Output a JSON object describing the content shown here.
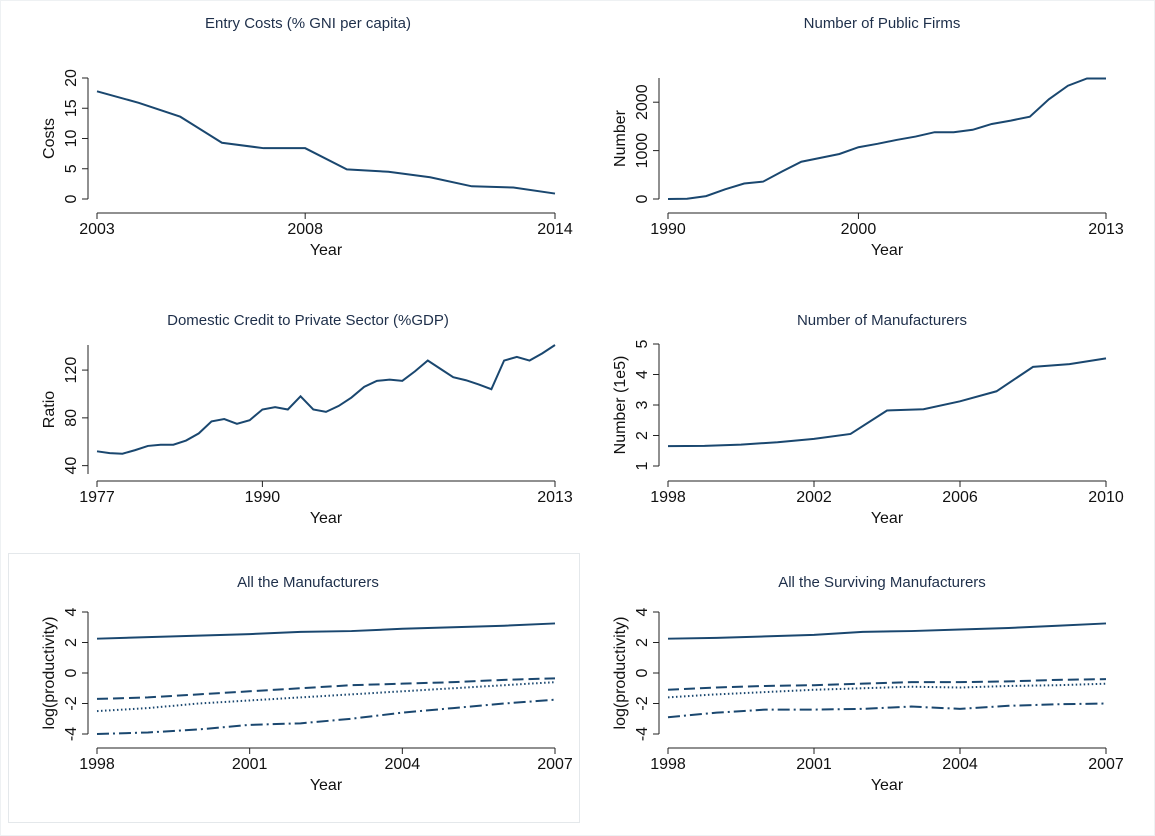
{
  "chart_data": [
    {
      "type": "line",
      "title": "Entry Costs (% GNI per capita)",
      "xlabel": "Year",
      "ylabel": "Costs",
      "x": [
        2003,
        2004,
        2005,
        2006,
        2007,
        2008,
        2009,
        2010,
        2011,
        2012,
        2013,
        2014
      ],
      "series": [
        {
          "color": "#1a476f",
          "dash": "solid",
          "values": [
            17.8,
            15.9,
            13.6,
            9.3,
            8.4,
            8.4,
            4.9,
            4.5,
            3.6,
            2.1,
            1.9,
            0.9
          ]
        }
      ],
      "xlim": [
        2003,
        2014
      ],
      "xticks": [
        2003,
        2008,
        2014
      ],
      "ylim": [
        0,
        20
      ],
      "yticks": [
        0,
        5,
        10,
        15,
        20
      ]
    },
    {
      "type": "line",
      "title": "Number of Public Firms",
      "xlabel": "Year",
      "ylabel": "Number",
      "x": [
        1990,
        1991,
        1992,
        1993,
        1994,
        1995,
        1996,
        1997,
        1998,
        1999,
        2000,
        2001,
        2002,
        2003,
        2004,
        2005,
        2006,
        2007,
        2008,
        2009,
        2010,
        2011,
        2012,
        2013
      ],
      "series": [
        {
          "color": "#1a476f",
          "dash": "solid",
          "values": [
            0,
            5,
            60,
            200,
            320,
            360,
            570,
            770,
            850,
            930,
            1070,
            1140,
            1220,
            1290,
            1380,
            1380,
            1430,
            1550,
            1620,
            1700,
            2060,
            2340,
            2490,
            2490
          ]
        }
      ],
      "xlim": [
        1990,
        2013
      ],
      "xticks": [
        1990,
        2000,
        2013
      ],
      "ylim": [
        0,
        2500
      ],
      "yticks": [
        0,
        1000,
        2000
      ]
    },
    {
      "type": "line",
      "title": "Domestic Credit to Private Sector (%GDP)",
      "xlabel": "Year",
      "ylabel": "Ratio",
      "x": [
        1977,
        1978,
        1979,
        1980,
        1981,
        1982,
        1983,
        1984,
        1985,
        1986,
        1987,
        1988,
        1989,
        1990,
        1991,
        1992,
        1993,
        1994,
        1995,
        1996,
        1997,
        1998,
        1999,
        2000,
        2001,
        2002,
        2003,
        2004,
        2005,
        2006,
        2007,
        2008,
        2009,
        2010,
        2011,
        2012,
        2013
      ],
      "series": [
        {
          "color": "#1a476f",
          "dash": "solid",
          "values": [
            52,
            50.5,
            50,
            53,
            56.5,
            57.5,
            57.5,
            61,
            67,
            77,
            79,
            75,
            78,
            87,
            89,
            87,
            98,
            87,
            85,
            90,
            97,
            106,
            111,
            112,
            111,
            119,
            128,
            121,
            114,
            111.5,
            108,
            104,
            128,
            131,
            128,
            134,
            141
          ]
        }
      ],
      "xlim": [
        1977,
        2013
      ],
      "xticks": [
        1977,
        1990,
        2013
      ],
      "ylim": [
        33,
        141
      ],
      "yticks": [
        40,
        80,
        120
      ]
    },
    {
      "type": "line",
      "title": "Number of Manufacturers",
      "xlabel": "Year",
      "ylabel": "Number (1e5)",
      "x": [
        1998,
        1999,
        2000,
        2001,
        2002,
        2003,
        2004,
        2005,
        2006,
        2007,
        2008,
        2009,
        2010
      ],
      "series": [
        {
          "color": "#1a476f",
          "dash": "solid",
          "values": [
            1.65,
            1.66,
            1.7,
            1.78,
            1.89,
            2.05,
            2.82,
            2.86,
            3.12,
            3.45,
            4.25,
            4.34,
            4.53
          ]
        }
      ],
      "xlim": [
        1998,
        2010
      ],
      "xticks": [
        1998,
        2002,
        2006,
        2010
      ],
      "ylim": [
        1,
        5
      ],
      "yticks": [
        1,
        2,
        3,
        4,
        5
      ]
    },
    {
      "type": "line",
      "title": "All the Manufacturers",
      "xlabel": "Year",
      "ylabel": "log(productivity)",
      "x": [
        1998,
        1999,
        2000,
        2001,
        2002,
        2003,
        2004,
        2005,
        2006,
        2007
      ],
      "series": [
        {
          "color": "#1a476f",
          "dash": "solid",
          "values": [
            2.25,
            2.35,
            2.45,
            2.55,
            2.7,
            2.75,
            2.9,
            3.0,
            3.1,
            3.25
          ]
        },
        {
          "color": "#1a476f",
          "dash": "dash",
          "values": [
            -1.7,
            -1.6,
            -1.4,
            -1.2,
            -1.0,
            -0.8,
            -0.7,
            -0.6,
            -0.45,
            -0.35
          ]
        },
        {
          "color": "#1a476f",
          "dash": "dot",
          "values": [
            -2.5,
            -2.3,
            -2.0,
            -1.8,
            -1.6,
            -1.4,
            -1.2,
            -1.0,
            -0.8,
            -0.6
          ]
        },
        {
          "color": "#1a476f",
          "dash": "dashdot",
          "values": [
            -4.0,
            -3.9,
            -3.7,
            -3.4,
            -3.3,
            -3.0,
            -2.6,
            -2.3,
            -2.0,
            -1.75
          ]
        }
      ],
      "xlim": [
        1998,
        2007
      ],
      "xticks": [
        1998,
        2001,
        2004,
        2007
      ],
      "ylim": [
        -4,
        4
      ],
      "yticks": [
        -4,
        -2,
        0,
        2,
        4
      ]
    },
    {
      "type": "line",
      "title": "All the Surviving Manufacturers",
      "xlabel": "Year",
      "ylabel": "log(productivity)",
      "x": [
        1998,
        1999,
        2000,
        2001,
        2002,
        2003,
        2004,
        2005,
        2006,
        2007
      ],
      "series": [
        {
          "color": "#1a476f",
          "dash": "solid",
          "values": [
            2.25,
            2.3,
            2.4,
            2.5,
            2.7,
            2.75,
            2.85,
            2.95,
            3.1,
            3.25
          ]
        },
        {
          "color": "#1a476f",
          "dash": "dash",
          "values": [
            -1.1,
            -0.95,
            -0.85,
            -0.8,
            -0.7,
            -0.6,
            -0.6,
            -0.55,
            -0.45,
            -0.4
          ]
        },
        {
          "color": "#1a476f",
          "dash": "dot",
          "values": [
            -1.6,
            -1.4,
            -1.25,
            -1.1,
            -1.0,
            -0.9,
            -0.95,
            -0.85,
            -0.8,
            -0.7
          ]
        },
        {
          "color": "#1a476f",
          "dash": "dashdot",
          "values": [
            -2.9,
            -2.6,
            -2.4,
            -2.4,
            -2.35,
            -2.2,
            -2.35,
            -2.15,
            -2.05,
            -2.0
          ]
        }
      ],
      "xlim": [
        1998,
        2007
      ],
      "xticks": [
        1998,
        2001,
        2004,
        2007
      ],
      "ylim": [
        -4,
        4
      ],
      "yticks": [
        -4,
        -2,
        0,
        2,
        4
      ]
    }
  ]
}
